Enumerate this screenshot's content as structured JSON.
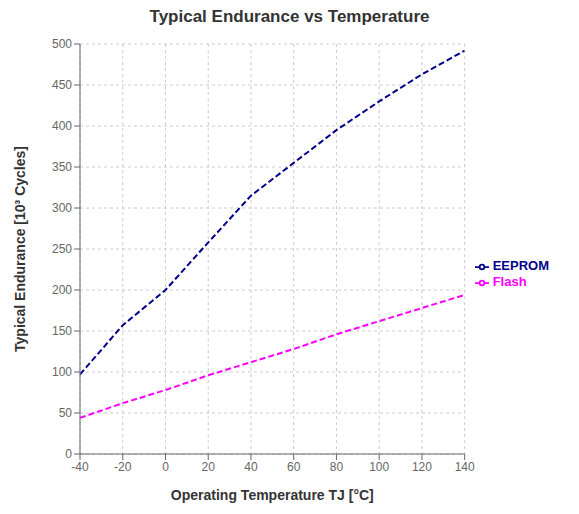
{
  "chart_data": {
    "type": "line",
    "title": "Typical Endurance vs Temperature",
    "x_label": "Operating Temperature TJ [°C]",
    "y_label": "Typical Endurance [10³ Cycles]",
    "xlim": [
      -40,
      140
    ],
    "ylim": [
      0,
      500
    ],
    "xticks": [
      -40,
      -20,
      0,
      20,
      40,
      60,
      80,
      100,
      120,
      140
    ],
    "yticks": [
      0,
      50,
      100,
      150,
      200,
      250,
      300,
      350,
      400,
      450,
      500
    ],
    "grid": true,
    "legend": "right",
    "line_style": "dashed",
    "series": [
      {
        "name": "Flash",
        "color": "#FF00FF",
        "x": [
          -40,
          -20,
          0,
          20,
          40,
          60,
          80,
          100,
          120,
          140
        ],
        "values": [
          44,
          62,
          78,
          96,
          112,
          128,
          146,
          162,
          178,
          194
        ]
      },
      {
        "name": "EEPROM",
        "color": "#00008B",
        "x": [
          -40,
          -20,
          0,
          20,
          40,
          60,
          80,
          100,
          120,
          140
        ],
        "values": [
          97,
          157,
          200,
          258,
          315,
          355,
          395,
          430,
          463,
          492
        ]
      }
    ]
  }
}
